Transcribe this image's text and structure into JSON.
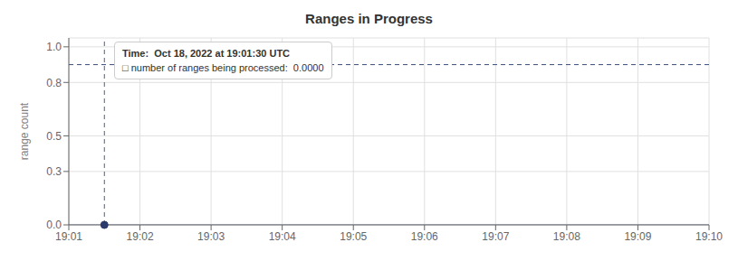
{
  "chart_data": {
    "type": "line",
    "title": "Ranges in Progress",
    "y_label": "range count",
    "x": [
      0.0,
      0.5,
      1.0,
      2.0,
      3.0,
      4.0,
      5.0,
      6.0,
      7.0,
      8.0,
      9.0
    ],
    "values": [
      0.0,
      0.0,
      0.0,
      0.0,
      0.0,
      0.0,
      0.0,
      0.0,
      0.0,
      0.0,
      0.0
    ],
    "color": "#8899bb",
    "xlim": [
      0,
      9
    ],
    "xticks": [
      {
        "value": 0,
        "label": "19:01"
      },
      {
        "value": 1,
        "label": "19:02"
      },
      {
        "value": 2,
        "label": "19:03"
      },
      {
        "value": 3,
        "label": "19:04"
      },
      {
        "value": 4,
        "label": "19:05"
      },
      {
        "value": 5,
        "label": "19:06"
      },
      {
        "value": 6,
        "label": "19:07"
      },
      {
        "value": 7,
        "label": "19:08"
      },
      {
        "value": 8,
        "label": "19:09"
      },
      {
        "value": 9,
        "label": "19:10"
      }
    ],
    "ylim": [
      0.0,
      1.05
    ],
    "yticks": [
      {
        "value": 0.0,
        "label": "0.0"
      },
      0.3,
      0.5,
      0.8,
      {
        "value": 1.0,
        "label": "1.0"
      }
    ],
    "grid": true,
    "hline": {
      "y": 0.9,
      "color": "#3a4e7a",
      "line_style": "dashed"
    },
    "vline": {
      "x": 0.5,
      "color": "#4a6090",
      "line_style": "dashed"
    },
    "points": [
      {
        "x": 0.5,
        "y": 0.0,
        "color": "#2a3a6a",
        "marker": "circle"
      }
    ],
    "annotations": [
      "Time:  Oct 18, 2022 at 19:01:30 UTC",
      "□ number of ranges being processed:  0.0000"
    ]
  }
}
